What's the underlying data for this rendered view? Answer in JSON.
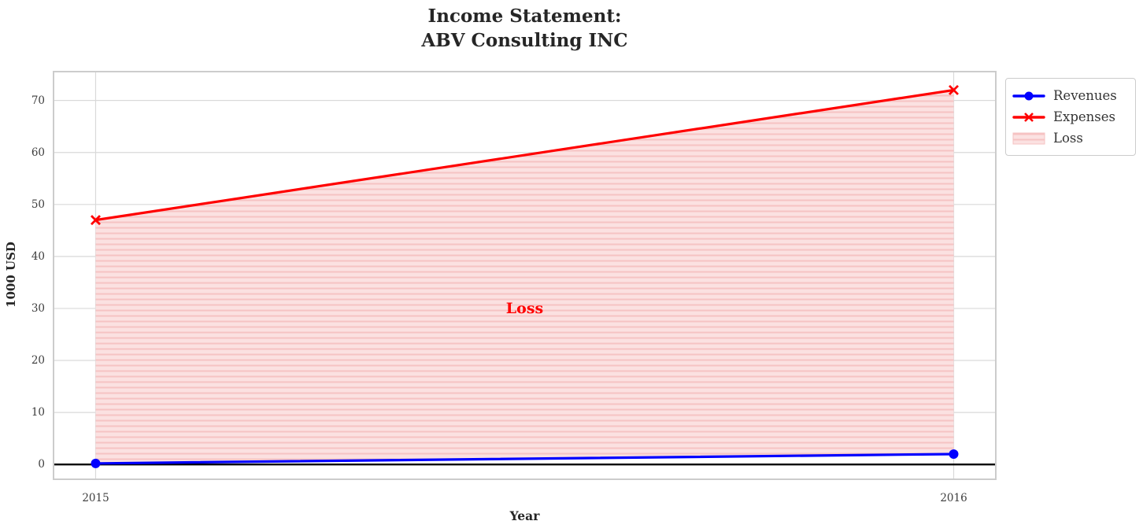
{
  "title": {
    "line1": "Income Statement:",
    "line2": "ABV Consulting INC"
  },
  "axes": {
    "xlabel": "Year",
    "ylabel": "1000 USD"
  },
  "legend": {
    "revenues_label": "Revenues",
    "expenses_label": "Expenses",
    "loss_label": "Loss"
  },
  "annotation_text": "Loss",
  "colors": {
    "revenues": "#0000ff",
    "expenses": "#ff0000",
    "loss_fill": "#fbe1e1",
    "loss_hatch": "#f6c3c3",
    "grid": "#d9d9d9",
    "frame": "#cccccc",
    "zero_line": "#000000",
    "annotation": "#ff0000"
  },
  "chart_data": {
    "type": "line",
    "title": "Income Statement: ABV Consulting INC",
    "x": [
      2015,
      2016
    ],
    "series": [
      {
        "name": "Revenues",
        "values": [
          0.2,
          2
        ],
        "color": "#0000ff",
        "marker": "circle"
      },
      {
        "name": "Expenses",
        "values": [
          47,
          72
        ],
        "color": "#ff0000",
        "marker": "x"
      }
    ],
    "fill_between": {
      "name": "Loss",
      "upper_series": "Expenses",
      "lower_series": "Revenues",
      "fill_color": "#fbe1e1",
      "hatch": "horizontal-lines",
      "hatch_color": "#f6c3c3"
    },
    "annotation": {
      "text": "Loss",
      "x": 2015.5,
      "y": 30,
      "color": "#ff0000"
    },
    "xlabel": "Year",
    "ylabel": "1000 USD",
    "xticks": [
      2015,
      2016
    ],
    "yticks": [
      0,
      10,
      20,
      30,
      40,
      50,
      60,
      70
    ],
    "xlim": [
      2014.95,
      2016.05
    ],
    "ylim": [
      -3,
      75.7
    ],
    "grid": true,
    "zero_line": 0,
    "legend_position": "outside-upper-right"
  }
}
